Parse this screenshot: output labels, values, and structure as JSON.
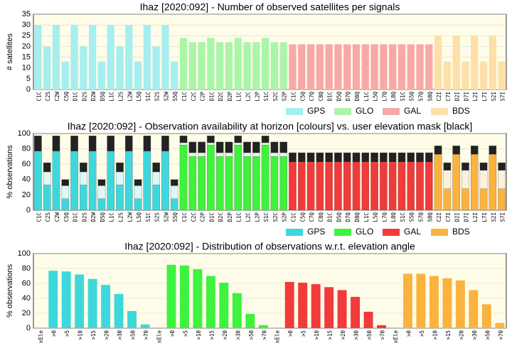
{
  "chart_data": [
    {
      "type": "bar",
      "title": "Ihaz [2020:092] - Number of observed satellites per signals",
      "ylabel": "# satellites",
      "ylim": [
        0,
        35
      ],
      "yticks": [
        0,
        5,
        10,
        15,
        20,
        25,
        30,
        35
      ],
      "grid": true,
      "groups": [
        {
          "name": "GPS",
          "color": "#a6eef0",
          "categories": [
            "C1C",
            "C2S",
            "C2W",
            "C5Q",
            "D1C",
            "D2S",
            "D2W",
            "D5Q",
            "L1C",
            "L2S",
            "L2W",
            "L5Q",
            "S1C",
            "S2S",
            "S2W",
            "S5Q"
          ],
          "values": [
            30,
            20,
            30,
            13,
            30,
            20,
            30,
            13,
            30,
            20,
            30,
            13,
            30,
            20,
            30,
            13
          ]
        },
        {
          "name": "GLO",
          "color": "#aaf5aa",
          "categories": [
            "C1C",
            "C2C",
            "C2P",
            "D1C",
            "D2C",
            "D2P",
            "L1C",
            "L2C",
            "L2P",
            "S1C",
            "S2C",
            "S2P"
          ],
          "values": [
            24,
            22,
            22,
            24,
            22,
            22,
            24,
            22,
            22,
            24,
            22,
            22
          ]
        },
        {
          "name": "GAL",
          "color": "#f8a8a8",
          "categories": [
            "C1C",
            "C5Q",
            "C7Q",
            "C8Q",
            "D1C",
            "D5Q",
            "D7Q",
            "D8Q",
            "L1C",
            "L5Q",
            "L7Q",
            "L8Q",
            "S1C",
            "S5Q",
            "S7Q",
            "S8Q"
          ],
          "values": [
            21,
            21,
            21,
            21,
            21,
            21,
            21,
            21,
            21,
            21,
            21,
            21,
            21,
            21,
            21,
            21
          ]
        },
        {
          "name": "BDS",
          "color": "#fce0a8",
          "categories": [
            "C2I",
            "C7I",
            "D2I",
            "D7I",
            "L2I",
            "L7I",
            "S2I",
            "S7I"
          ],
          "values": [
            25,
            13,
            25,
            13,
            25,
            13,
            25,
            13
          ]
        }
      ]
    },
    {
      "type": "stacked_bar",
      "title": "Ihaz [2020:092] - Observation availability at horizon [colours] vs. user elevation mask [black]",
      "ylabel": "% observations",
      "ylim": [
        0,
        100
      ],
      "yticks": [
        0,
        20,
        40,
        60,
        80,
        100
      ],
      "grid": true,
      "mask_color": "#222222",
      "groups": [
        {
          "name": "GPS",
          "color": "#3ed8dc",
          "light_color": "#dcf8f8",
          "categories": [
            "C1C",
            "C2S",
            "C2W",
            "C5Q",
            "D1C",
            "D2S",
            "D2W",
            "D5Q",
            "L1C",
            "L2S",
            "L2W",
            "L5Q",
            "S1C",
            "S2S",
            "S2W",
            "S5Q"
          ],
          "values": [
            77,
            33,
            77,
            15,
            77,
            33,
            77,
            15,
            77,
            33,
            77,
            15,
            77,
            33,
            77,
            15
          ],
          "light_values": [
            0,
            17,
            0,
            17,
            0,
            17,
            0,
            17,
            0,
            17,
            0,
            17,
            0,
            17,
            0,
            17
          ],
          "mask_values": [
            20,
            12,
            20,
            8,
            20,
            12,
            20,
            8,
            20,
            12,
            20,
            8,
            20,
            12,
            20,
            8
          ]
        },
        {
          "name": "GLO",
          "color": "#3ef23e",
          "light_color": "#dcfcdc",
          "categories": [
            "C1C",
            "C2C",
            "C2P",
            "D1C",
            "D2C",
            "D2P",
            "L1C",
            "L2C",
            "L2P",
            "S1C",
            "S2C",
            "S2P"
          ],
          "values": [
            85,
            70,
            70,
            85,
            70,
            70,
            85,
            70,
            70,
            85,
            70,
            70
          ],
          "light_values": [
            3,
            5,
            5,
            3,
            5,
            5,
            3,
            5,
            5,
            3,
            5,
            5
          ],
          "mask_values": [
            9,
            14,
            14,
            9,
            14,
            14,
            9,
            14,
            14,
            9,
            14,
            14
          ]
        },
        {
          "name": "GAL",
          "color": "#f23a3a",
          "light_color": "#fcdcdc",
          "categories": [
            "C1C",
            "C5Q",
            "C7Q",
            "C8Q",
            "D1C",
            "D5Q",
            "D7Q",
            "D8Q",
            "L1C",
            "L5Q",
            "L7Q",
            "L8Q",
            "S1C",
            "S5Q",
            "S7Q",
            "S8Q"
          ],
          "values": [
            63,
            63,
            63,
            63,
            63,
            63,
            63,
            63,
            63,
            63,
            63,
            63,
            63,
            63,
            63,
            63
          ],
          "light_values": [
            0,
            0,
            0,
            0,
            0,
            0,
            0,
            0,
            0,
            0,
            0,
            0,
            0,
            0,
            0,
            0
          ],
          "mask_values": [
            12,
            12,
            12,
            12,
            12,
            12,
            12,
            12,
            12,
            12,
            12,
            12,
            12,
            12,
            12,
            12
          ]
        },
        {
          "name": "BDS",
          "color": "#fbb23e",
          "light_color": "#fdf0dc",
          "categories": [
            "C2I",
            "C7I",
            "D2I",
            "D7I",
            "L2I",
            "L7I",
            "S2I",
            "S7I"
          ],
          "values": [
            73,
            28,
            73,
            28,
            73,
            28,
            73,
            28
          ],
          "light_values": [
            0,
            24,
            0,
            24,
            0,
            24,
            0,
            24
          ],
          "mask_values": [
            11,
            10,
            11,
            10,
            11,
            10,
            11,
            10
          ]
        }
      ]
    },
    {
      "type": "bar",
      "title": "Ihaz [2020:092] - Distribution of observations w.r.t. elevation angle",
      "ylabel": "% observations",
      "ylim": [
        0,
        100
      ],
      "yticks": [
        0,
        20,
        40,
        60,
        80,
        100
      ],
      "grid": true,
      "groups": [
        {
          "name": "GPS",
          "color": "#3ed8dc",
          "categories": [
            "xEle",
            ">0",
            ">5",
            ">10",
            ">15",
            ">20",
            ">30",
            ">50",
            ">70"
          ],
          "values": [
            0,
            77,
            76,
            72,
            66,
            58,
            46,
            23,
            5
          ]
        },
        {
          "name": "GLO",
          "color": "#3ef23e",
          "categories": [
            "xEle",
            ">0",
            ">5",
            ">10",
            ">15",
            ">20",
            ">30",
            ">50",
            ">70"
          ],
          "values": [
            0,
            85,
            84,
            79,
            70,
            61,
            47,
            19,
            4
          ]
        },
        {
          "name": "GAL",
          "color": "#f23a3a",
          "categories": [
            "xEle",
            ">0",
            ">5",
            ">10",
            ">15",
            ">20",
            ">30",
            ">50",
            ">70"
          ],
          "values": [
            0,
            62,
            61,
            59,
            55,
            51,
            42,
            22,
            4
          ]
        },
        {
          "name": "BDS",
          "color": "#fbb23e",
          "categories": [
            "xEle",
            ">0",
            ">5",
            ">10",
            ">15",
            ">20",
            ">30",
            ">50",
            ">70"
          ],
          "values": [
            0,
            73,
            73,
            70,
            67,
            64,
            51,
            32,
            7
          ]
        }
      ]
    }
  ]
}
